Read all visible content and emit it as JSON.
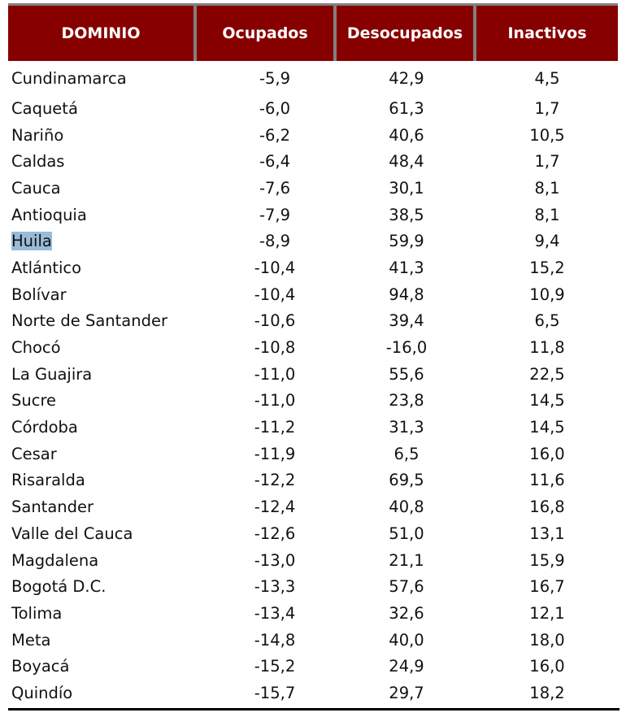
{
  "table": {
    "headers": [
      "DOMINIO",
      "Ocupados",
      "Desocupados",
      "Inactivos"
    ],
    "header_bg": "#870000",
    "rows": [
      {
        "dominio": "Cundinamarca",
        "ocupados": "-5,9",
        "desocupados": "42,9",
        "inactivos": "4,5"
      },
      {
        "dominio": "Caquetá",
        "ocupados": "-6,0",
        "desocupados": "61,3",
        "inactivos": "1,7"
      },
      {
        "dominio": "Nariño",
        "ocupados": "-6,2",
        "desocupados": "40,6",
        "inactivos": "10,5"
      },
      {
        "dominio": "Caldas",
        "ocupados": "-6,4",
        "desocupados": "48,4",
        "inactivos": "1,7"
      },
      {
        "dominio": "Cauca",
        "ocupados": "-7,6",
        "desocupados": "30,1",
        "inactivos": "8,1"
      },
      {
        "dominio": "Antioquia",
        "ocupados": "-7,9",
        "desocupados": "38,5",
        "inactivos": "8,1"
      },
      {
        "dominio": "Huila",
        "ocupados": "-8,9",
        "desocupados": "59,9",
        "inactivos": "9,4",
        "highlighted": true
      },
      {
        "dominio": "Atlántico",
        "ocupados": "-10,4",
        "desocupados": "41,3",
        "inactivos": "15,2"
      },
      {
        "dominio": "Bolívar",
        "ocupados": "-10,4",
        "desocupados": "94,8",
        "inactivos": "10,9"
      },
      {
        "dominio": "Norte de Santander",
        "ocupados": "-10,6",
        "desocupados": "39,4",
        "inactivos": "6,5"
      },
      {
        "dominio": "Chocó",
        "ocupados": "-10,8",
        "desocupados": "-16,0",
        "inactivos": "11,8"
      },
      {
        "dominio": "La Guajira",
        "ocupados": "-11,0",
        "desocupados": "55,6",
        "inactivos": "22,5"
      },
      {
        "dominio": "Sucre",
        "ocupados": "-11,0",
        "desocupados": "23,8",
        "inactivos": "14,5"
      },
      {
        "dominio": "Córdoba",
        "ocupados": "-11,2",
        "desocupados": "31,3",
        "inactivos": "14,5"
      },
      {
        "dominio": "Cesar",
        "ocupados": "-11,9",
        "desocupados": "6,5",
        "inactivos": "16,0"
      },
      {
        "dominio": "Risaralda",
        "ocupados": "-12,2",
        "desocupados": "69,5",
        "inactivos": "11,6"
      },
      {
        "dominio": "Santander",
        "ocupados": "-12,4",
        "desocupados": "40,8",
        "inactivos": "16,8"
      },
      {
        "dominio": "Valle del Cauca",
        "ocupados": "-12,6",
        "desocupados": "51,0",
        "inactivos": "13,1"
      },
      {
        "dominio": "Magdalena",
        "ocupados": "-13,0",
        "desocupados": "21,1",
        "inactivos": "15,9"
      },
      {
        "dominio": "Bogotá D.C.",
        "ocupados": "-13,3",
        "desocupados": "57,6",
        "inactivos": "16,7"
      },
      {
        "dominio": "Tolima",
        "ocupados": "-13,4",
        "desocupados": "32,6",
        "inactivos": "12,1"
      },
      {
        "dominio": "Meta",
        "ocupados": "-14,8",
        "desocupados": "40,0",
        "inactivos": "18,0"
      },
      {
        "dominio": "Boyacá",
        "ocupados": "-15,2",
        "desocupados": "24,9",
        "inactivos": "16,0"
      },
      {
        "dominio": "Quindío",
        "ocupados": "-15,7",
        "desocupados": "29,7",
        "inactivos": "18,2"
      }
    ]
  }
}
